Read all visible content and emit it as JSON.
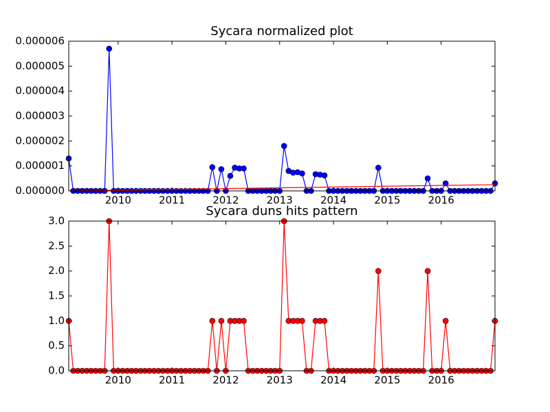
{
  "chart_data": [
    {
      "type": "line",
      "title": "Sycara normalized plot",
      "x": [
        2009.083,
        2009.167,
        2009.25,
        2009.333,
        2009.417,
        2009.5,
        2009.583,
        2009.667,
        2009.75,
        2009.833,
        2009.917,
        2010,
        2010.083,
        2010.167,
        2010.25,
        2010.333,
        2010.417,
        2010.5,
        2010.583,
        2010.667,
        2010.75,
        2010.833,
        2010.917,
        2011,
        2011.083,
        2011.167,
        2011.25,
        2011.333,
        2011.417,
        2011.5,
        2011.583,
        2011.667,
        2011.75,
        2011.833,
        2011.917,
        2012,
        2012.083,
        2012.167,
        2012.25,
        2012.333,
        2012.417,
        2012.5,
        2012.583,
        2012.667,
        2012.75,
        2012.833,
        2012.917,
        2013,
        2013.083,
        2013.167,
        2013.25,
        2013.333,
        2013.417,
        2013.5,
        2013.583,
        2013.667,
        2013.75,
        2013.833,
        2013.917,
        2014,
        2014.083,
        2014.167,
        2014.25,
        2014.333,
        2014.417,
        2014.5,
        2014.583,
        2014.667,
        2014.75,
        2014.833,
        2014.917,
        2015,
        2015.083,
        2015.167,
        2015.25,
        2015.333,
        2015.417,
        2015.5,
        2015.583,
        2015.667,
        2015.75,
        2015.833,
        2015.917,
        2016,
        2016.083,
        2016.167,
        2016.25,
        2016.333,
        2016.417,
        2016.5,
        2016.583,
        2016.667,
        2016.75,
        2016.833,
        2016.917,
        2017
      ],
      "series": [
        {
          "color": "#0000ff",
          "marker": true,
          "values": [
            1.3e-06,
            0,
            0,
            0,
            0,
            0,
            0,
            0,
            0,
            5.7e-06,
            0,
            0,
            0,
            0,
            0,
            0,
            0,
            0,
            0,
            0,
            0,
            0,
            0,
            0,
            0,
            0,
            0,
            0,
            0,
            0,
            0,
            0,
            9.5e-07,
            0,
            8.7e-07,
            0,
            6e-07,
            9.3e-07,
            9e-07,
            9e-07,
            0,
            0,
            0,
            0,
            0,
            0,
            0,
            0,
            1.8e-06,
            8e-07,
            7.3e-07,
            7.5e-07,
            7e-07,
            0,
            0,
            6.7e-07,
            6.5e-07,
            6.2e-07,
            0,
            0,
            0,
            0,
            0,
            0,
            0,
            0,
            0,
            0,
            0,
            9.3e-07,
            0,
            0,
            0,
            0,
            0,
            0,
            0,
            0,
            0,
            0,
            5e-07,
            0,
            0,
            0,
            3e-07,
            0,
            0,
            0,
            0,
            0,
            0,
            0,
            0,
            0,
            0,
            3e-07
          ]
        },
        {
          "color": "#ff0000",
          "marker": false,
          "x": [
            2009.083,
            2017
          ],
          "values": [
            0,
            2.5e-07
          ]
        }
      ],
      "xlim": [
        2009.083,
        2017
      ],
      "xticks": [
        2010,
        2011,
        2012,
        2013,
        2014,
        2015,
        2016
      ],
      "ylim": [
        0,
        6e-06
      ],
      "yticks": [
        {
          "value": 0,
          "label": "0.000000"
        },
        {
          "value": 1e-06,
          "label": "0.000001"
        },
        {
          "value": 2e-06,
          "label": "0.000002"
        },
        {
          "value": 3e-06,
          "label": "0.000003"
        },
        {
          "value": 4e-06,
          "label": "0.000004"
        },
        {
          "value": 5e-06,
          "label": "0.000005"
        },
        {
          "value": 6e-06,
          "label": "0.000006"
        }
      ]
    },
    {
      "type": "line",
      "title": "Sycara duns hits pattern",
      "x": [
        2009.083,
        2009.167,
        2009.25,
        2009.333,
        2009.417,
        2009.5,
        2009.583,
        2009.667,
        2009.75,
        2009.833,
        2009.917,
        2010,
        2010.083,
        2010.167,
        2010.25,
        2010.333,
        2010.417,
        2010.5,
        2010.583,
        2010.667,
        2010.75,
        2010.833,
        2010.917,
        2011,
        2011.083,
        2011.167,
        2011.25,
        2011.333,
        2011.417,
        2011.5,
        2011.583,
        2011.667,
        2011.75,
        2011.833,
        2011.917,
        2012,
        2012.083,
        2012.167,
        2012.25,
        2012.333,
        2012.417,
        2012.5,
        2012.583,
        2012.667,
        2012.75,
        2012.833,
        2012.917,
        2013,
        2013.083,
        2013.167,
        2013.25,
        2013.333,
        2013.417,
        2013.5,
        2013.583,
        2013.667,
        2013.75,
        2013.833,
        2013.917,
        2014,
        2014.083,
        2014.167,
        2014.25,
        2014.333,
        2014.417,
        2014.5,
        2014.583,
        2014.667,
        2014.75,
        2014.833,
        2014.917,
        2015,
        2015.083,
        2015.167,
        2015.25,
        2015.333,
        2015.417,
        2015.5,
        2015.583,
        2015.667,
        2015.75,
        2015.833,
        2015.917,
        2016,
        2016.083,
        2016.167,
        2016.25,
        2016.333,
        2016.417,
        2016.5,
        2016.583,
        2016.667,
        2016.75,
        2016.833,
        2016.917,
        2017
      ],
      "series": [
        {
          "color": "#ff0000",
          "marker": true,
          "values": [
            1,
            0,
            0,
            0,
            0,
            0,
            0,
            0,
            0,
            3,
            0,
            0,
            0,
            0,
            0,
            0,
            0,
            0,
            0,
            0,
            0,
            0,
            0,
            0,
            0,
            0,
            0,
            0,
            0,
            0,
            0,
            0,
            1,
            0,
            1,
            0,
            1,
            1,
            1,
            1,
            0,
            0,
            0,
            0,
            0,
            0,
            0,
            0,
            3,
            1,
            1,
            1,
            1,
            0,
            0,
            1,
            1,
            1,
            0,
            0,
            0,
            0,
            0,
            0,
            0,
            0,
            0,
            0,
            0,
            2,
            0,
            0,
            0,
            0,
            0,
            0,
            0,
            0,
            0,
            0,
            2,
            0,
            0,
            0,
            1,
            0,
            0,
            0,
            0,
            0,
            0,
            0,
            0,
            0,
            0,
            1
          ]
        }
      ],
      "xlim": [
        2009.083,
        2017
      ],
      "xticks": [
        2010,
        2011,
        2012,
        2013,
        2014,
        2015,
        2016
      ],
      "ylim": [
        0,
        3
      ],
      "yticks": [
        {
          "value": 0,
          "label": "0.0"
        },
        0.5,
        {
          "value": 1,
          "label": "1.0"
        },
        1.5,
        {
          "value": 2,
          "label": "2.0"
        },
        2.5,
        {
          "value": 3,
          "label": "3.0"
        }
      ]
    }
  ]
}
